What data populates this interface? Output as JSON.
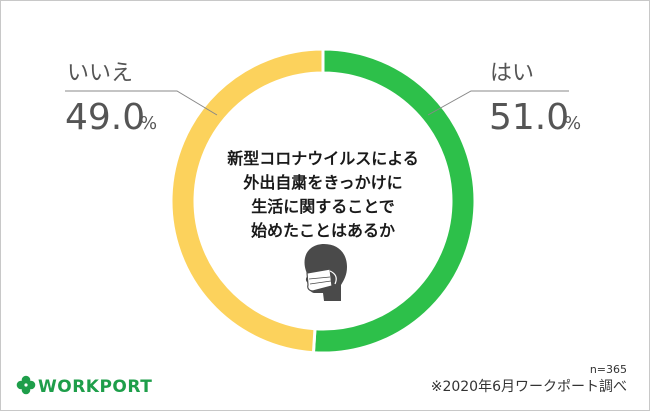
{
  "chart_data": {
    "type": "pie",
    "donut": true,
    "title": [
      "新型コロナウイルスによる",
      "外出自粛をきっかけに",
      "生活に関することで",
      "始めたことはあるか"
    ],
    "slices": [
      {
        "label": "はい",
        "value": 51.0,
        "value_text": "51.0",
        "unit": "%",
        "color": "#2dc04a"
      },
      {
        "label": "いいえ",
        "value": 49.0,
        "value_text": "49.0",
        "unit": "%",
        "color": "#fcd25c"
      }
    ],
    "sample_size": "n=365",
    "source": "※2020年6月ワークポート調べ",
    "center_icon": "person-mask-icon"
  },
  "brand": {
    "name": "WORKPORT",
    "logo_icon": "clover-icon",
    "color": "#1e9e4a"
  },
  "colors": {
    "leader_line": "#888888"
  }
}
